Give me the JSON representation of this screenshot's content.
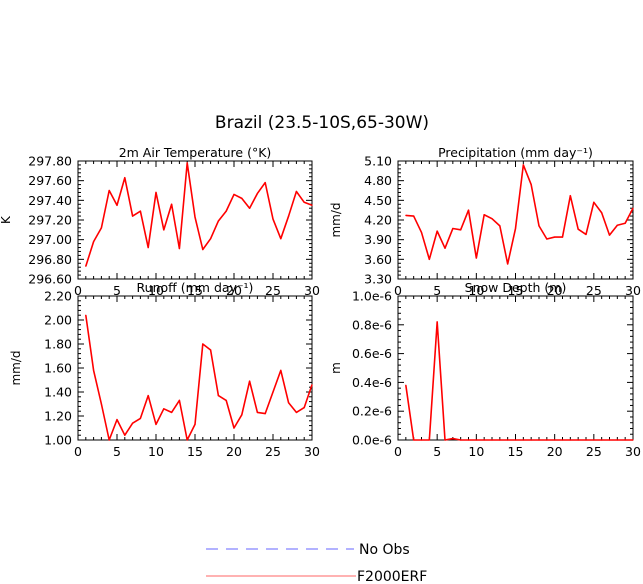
{
  "main_title": "Brazil (23.5-10S,65-30W)",
  "colors": {
    "model": "#ff0000",
    "legend_model": "#ff9999",
    "legend_obs": "#9999ff",
    "axis": "#000000"
  },
  "legend": [
    {
      "label": "No Obs",
      "style": "dashed",
      "color": "#9999ff"
    },
    {
      "label": "F2000ERF",
      "style": "solid",
      "color": "#ff9999"
    }
  ],
  "chart_data": [
    {
      "type": "line",
      "title": "2m Air Temperature (°K)",
      "ylabel": "K",
      "xlim": [
        0,
        30
      ],
      "ylim": [
        296.6,
        297.8
      ],
      "xticks": [
        "0",
        "5",
        "10",
        "15",
        "20",
        "25",
        "30"
      ],
      "yticks": [
        "296.60",
        "296.80",
        "297.00",
        "297.20",
        "297.40",
        "297.60",
        "297.80"
      ],
      "series": [
        {
          "name": "F2000ERF",
          "x": [
            1,
            2,
            3,
            4,
            5,
            6,
            7,
            8,
            9,
            10,
            11,
            12,
            13,
            14,
            15,
            16,
            17,
            18,
            19,
            20,
            21,
            22,
            23,
            24,
            25,
            26,
            27,
            28,
            29,
            30
          ],
          "values": [
            296.73,
            296.98,
            297.12,
            297.5,
            297.35,
            297.63,
            297.24,
            297.29,
            296.92,
            297.48,
            297.1,
            297.36,
            296.91,
            297.78,
            297.23,
            296.9,
            297.01,
            297.19,
            297.29,
            297.46,
            297.42,
            297.32,
            297.47,
            297.58,
            297.21,
            297.01,
            297.24,
            297.49,
            297.38,
            297.35
          ]
        }
      ]
    },
    {
      "type": "line",
      "title": "Precipitation (mm day⁻¹)",
      "ylabel": "mm/d",
      "xlim": [
        0,
        30
      ],
      "ylim": [
        3.3,
        5.1
      ],
      "xticks": [
        "0",
        "5",
        "10",
        "15",
        "20",
        "25",
        "30"
      ],
      "yticks": [
        "3.30",
        "3.60",
        "3.90",
        "4.20",
        "4.50",
        "4.80",
        "5.10"
      ],
      "series": [
        {
          "name": "F2000ERF",
          "x": [
            1,
            2,
            3,
            4,
            5,
            6,
            7,
            8,
            9,
            10,
            11,
            12,
            13,
            14,
            15,
            16,
            17,
            18,
            19,
            20,
            21,
            22,
            23,
            24,
            25,
            26,
            27,
            28,
            29,
            30
          ],
          "values": [
            4.27,
            4.26,
            4.01,
            3.6,
            4.03,
            3.77,
            4.07,
            4.05,
            4.35,
            3.62,
            4.28,
            4.22,
            4.11,
            3.53,
            4.07,
            5.04,
            4.74,
            4.11,
            3.91,
            3.94,
            3.94,
            4.57,
            4.06,
            3.98,
            4.47,
            4.31,
            3.97,
            4.12,
            4.15,
            4.38
          ]
        }
      ]
    },
    {
      "type": "line",
      "title": "Runoff (mm day⁻¹)",
      "ylabel": "mm/d",
      "xlim": [
        0,
        30
      ],
      "ylim": [
        1.0,
        2.2
      ],
      "xticks": [
        "0",
        "5",
        "10",
        "15",
        "20",
        "25",
        "30"
      ],
      "yticks": [
        "1.00",
        "1.20",
        "1.40",
        "1.60",
        "1.80",
        "2.00",
        "2.20"
      ],
      "series": [
        {
          "name": "F2000ERF",
          "x": [
            1,
            2,
            3,
            4,
            5,
            6,
            7,
            8,
            9,
            10,
            11,
            12,
            13,
            14,
            15,
            16,
            17,
            18,
            19,
            20,
            21,
            22,
            23,
            24,
            25,
            26,
            27,
            28,
            29,
            30
          ],
          "values": [
            2.04,
            1.58,
            1.3,
            1.0,
            1.17,
            1.04,
            1.14,
            1.18,
            1.37,
            1.13,
            1.26,
            1.23,
            1.33,
            1.0,
            1.13,
            1.8,
            1.75,
            1.37,
            1.33,
            1.1,
            1.21,
            1.49,
            1.23,
            1.22,
            1.4,
            1.58,
            1.31,
            1.23,
            1.27,
            1.46
          ]
        }
      ]
    },
    {
      "type": "line",
      "title": "Snow Depth (m)",
      "ylabel": "m",
      "xlim": [
        0,
        30
      ],
      "ylim": [
        0,
        1e-06
      ],
      "xticks": [
        "0",
        "5",
        "10",
        "15",
        "20",
        "25",
        "30"
      ],
      "yticks": [
        "0.0e-6",
        "0.2e-6",
        "0.4e-6",
        "0.6e-6",
        "0.8e-6",
        "1.0e-6"
      ],
      "series": [
        {
          "name": "F2000ERF",
          "x": [
            1,
            2,
            3,
            4,
            5,
            6,
            7,
            8,
            9,
            10,
            11,
            12,
            13,
            14,
            15,
            16,
            17,
            18,
            19,
            20,
            21,
            22,
            23,
            24,
            25,
            26,
            27,
            28,
            29,
            30
          ],
          "values": [
            3.8e-07,
            0,
            0,
            0,
            8.2e-07,
            0,
            1e-08,
            0,
            0,
            0,
            0,
            0,
            0,
            0,
            0,
            0,
            0,
            0,
            0,
            0,
            0,
            0,
            0,
            0,
            0,
            0,
            0,
            0,
            0,
            0
          ]
        }
      ]
    }
  ]
}
